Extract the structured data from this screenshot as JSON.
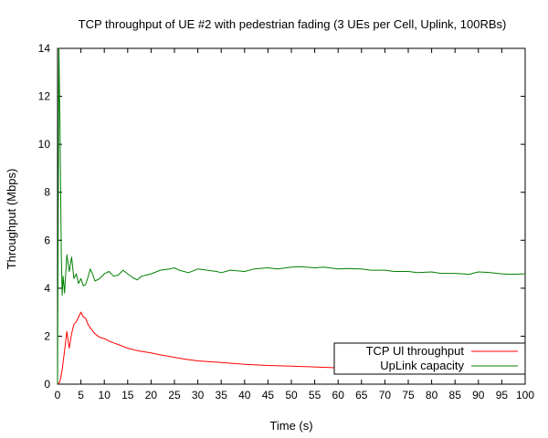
{
  "chart_data": {
    "type": "line",
    "title": "TCP throughput of UE #2 with pedestrian fading (3 UEs per Cell, Uplink, 100RBs)",
    "xlabel": "Time (s)",
    "ylabel": "Throughput (Mbps)",
    "xlim": [
      0,
      100
    ],
    "ylim": [
      0,
      14
    ],
    "xticks": [
      "0",
      "5",
      "10",
      "15",
      "20",
      "25",
      "30",
      "35",
      "40",
      "45",
      "50",
      "55",
      "60",
      "65",
      "70",
      "75",
      "80",
      "85",
      "90",
      "95",
      "100"
    ],
    "yticks": [
      "0",
      "2",
      "4",
      "6",
      "8",
      "10",
      "12",
      "14"
    ],
    "grid": false,
    "legend_position": "bottom-right",
    "series": [
      {
        "name": "TCP Ul throughput",
        "color": "#ff0000",
        "x": [
          0,
          0.5,
          1,
          1.5,
          2,
          2.5,
          3,
          3.5,
          4,
          4.5,
          5,
          5.5,
          6,
          6.5,
          7,
          8,
          9,
          10,
          11,
          12,
          13,
          15,
          17,
          20,
          22,
          25,
          27,
          30,
          35,
          40,
          45,
          50,
          55,
          60,
          65,
          70,
          75,
          80,
          85,
          90,
          95,
          100
        ],
        "y": [
          0,
          0.1,
          0.6,
          1.4,
          2.2,
          1.5,
          2.1,
          2.5,
          2.6,
          2.8,
          3.0,
          2.8,
          2.75,
          2.5,
          2.35,
          2.1,
          1.95,
          1.9,
          1.8,
          1.72,
          1.65,
          1.5,
          1.4,
          1.3,
          1.22,
          1.12,
          1.05,
          0.97,
          0.9,
          0.83,
          0.78,
          0.75,
          0.72,
          0.68,
          0.65,
          0.62,
          0.6,
          0.58,
          0.56,
          0.55,
          0.54,
          0.53
        ]
      },
      {
        "name": "UpLink capacity",
        "color": "#008000",
        "x": [
          0,
          0.3,
          0.5,
          0.8,
          1,
          1.2,
          1.5,
          2,
          2.5,
          3,
          3.5,
          4,
          4.5,
          5,
          5.5,
          6,
          6.5,
          7,
          7.5,
          8,
          9,
          10,
          11,
          12,
          13,
          14,
          15,
          16,
          17,
          18,
          19,
          20,
          22,
          24,
          25,
          26,
          28,
          30,
          32,
          34,
          35,
          37,
          40,
          42,
          45,
          47,
          50,
          52,
          55,
          57,
          60,
          62,
          65,
          67,
          70,
          72,
          75,
          77,
          80,
          82,
          85,
          88,
          90,
          92,
          95,
          97,
          100
        ],
        "y": [
          0,
          14,
          11,
          5.5,
          3.7,
          4.5,
          3.8,
          5.4,
          4.7,
          5.3,
          4.4,
          4.6,
          4.2,
          4.4,
          4.1,
          4.15,
          4.45,
          4.8,
          4.6,
          4.3,
          4.4,
          4.6,
          4.7,
          4.5,
          4.55,
          4.75,
          4.6,
          4.45,
          4.35,
          4.5,
          4.55,
          4.6,
          4.75,
          4.8,
          4.85,
          4.75,
          4.65,
          4.8,
          4.75,
          4.7,
          4.65,
          4.75,
          4.7,
          4.8,
          4.85,
          4.8,
          4.88,
          4.9,
          4.85,
          4.88,
          4.8,
          4.82,
          4.8,
          4.75,
          4.75,
          4.7,
          4.7,
          4.65,
          4.68,
          4.62,
          4.62,
          4.58,
          4.68,
          4.66,
          4.6,
          4.58,
          4.6
        ]
      }
    ]
  }
}
